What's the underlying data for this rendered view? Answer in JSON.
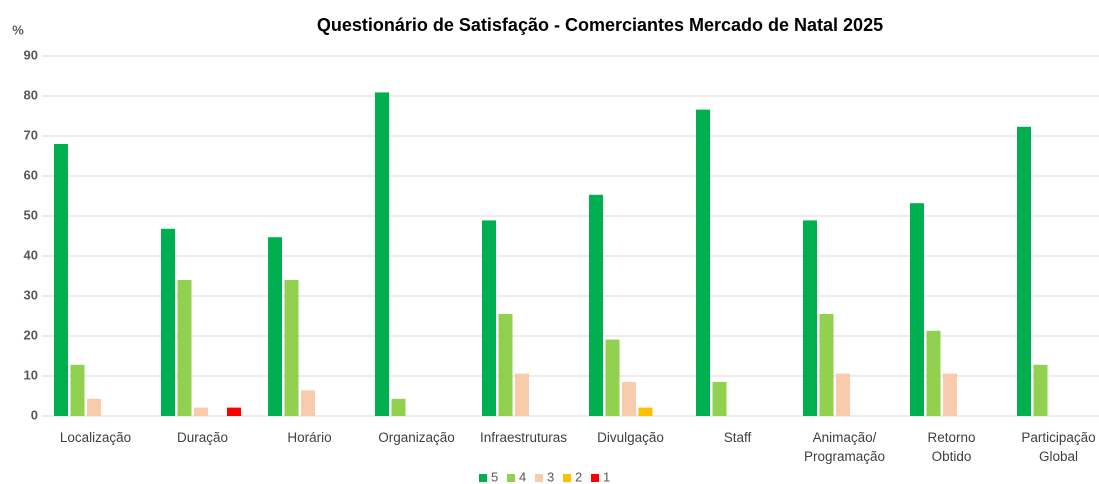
{
  "chart_data": {
    "type": "bar",
    "title": "Questionário de Satisfação - Comerciantes Mercado de Natal 2025",
    "y_label": "%",
    "categories": [
      "Localização",
      "Duração",
      "Horário",
      "Organização",
      "Infraestruturas",
      "Divulgação",
      "Staff",
      "Animação/\nProgramação",
      "Retorno\nObtido",
      "Participação\nGlobal"
    ],
    "series": [
      {
        "name": "5",
        "color": "#00b050",
        "values": [
          68,
          46.8,
          44.7,
          80.9,
          48.9,
          55.3,
          76.6,
          48.9,
          53.2,
          72.3
        ]
      },
      {
        "name": "4",
        "color": "#92d050",
        "values": [
          12.8,
          34,
          34,
          4.3,
          25.5,
          19.1,
          8.5,
          25.5,
          21.3,
          12.8
        ]
      },
      {
        "name": "3",
        "color": "#f8cbad",
        "values": [
          4.3,
          2.1,
          6.4,
          0,
          10.6,
          8.5,
          0,
          10.6,
          10.6,
          0
        ]
      },
      {
        "name": "2",
        "color": "#ffc000",
        "values": [
          0,
          0,
          0,
          0,
          0,
          2.1,
          0,
          0,
          0,
          0
        ]
      },
      {
        "name": "1",
        "color": "#ff0000",
        "values": [
          0,
          2.1,
          0,
          0,
          0,
          0,
          0,
          0,
          0,
          0
        ]
      }
    ],
    "ylim": [
      0,
      90
    ],
    "yticks": [
      0,
      10,
      20,
      30,
      40,
      50,
      60,
      70,
      80,
      90
    ],
    "grid": true,
    "legend": "bottom"
  }
}
